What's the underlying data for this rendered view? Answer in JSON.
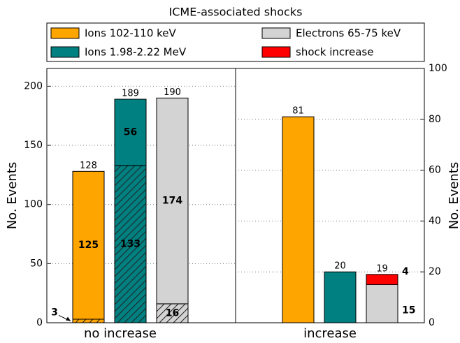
{
  "chart_data": {
    "type": "bar",
    "title": "ICME-associated shocks",
    "series": [
      {
        "name": "Ions 102-110 keV",
        "color": "#ffa500"
      },
      {
        "name": "Ions 1.98-2.22 MeV",
        "color": "#008080"
      },
      {
        "name": "Electrons 65-75 keV",
        "color": "#d3d3d3"
      },
      {
        "name": "shock increase",
        "color": "#ff0000"
      }
    ],
    "panels": [
      {
        "category": "no increase",
        "ylabel": "No. Events",
        "axis": "y",
        "ylim": [
          0,
          215
        ],
        "yticks": [
          0,
          50,
          100,
          150,
          200
        ],
        "grid": true,
        "bars": [
          {
            "segments": [
              {
                "series": 0,
                "value": 3,
                "hatch": true
              },
              {
                "series": 0,
                "value": 125
              }
            ],
            "total": 128
          },
          {
            "segments": [
              {
                "series": 1,
                "value": 133,
                "hatch": true
              },
              {
                "series": 1,
                "value": 56
              }
            ],
            "total": 189
          },
          {
            "segments": [
              {
                "series": 2,
                "value": 16,
                "hatch": true
              },
              {
                "series": 2,
                "value": 174
              }
            ],
            "total": 190
          }
        ]
      },
      {
        "category": "increase",
        "ylabel": "No. Events",
        "axis": "y2",
        "ylim": [
          0,
          100
        ],
        "yticks": [
          0,
          20,
          40,
          60,
          80,
          100
        ],
        "grid": true,
        "bars": [
          {
            "segments": [
              {
                "series": 0,
                "value": 81
              }
            ],
            "total": 81
          },
          {
            "segments": [
              {
                "series": 1,
                "value": 20
              }
            ],
            "total": 20
          },
          {
            "segments": [
              {
                "series": 2,
                "value": 15
              },
              {
                "series": 3,
                "value": 4
              }
            ],
            "total": 19
          }
        ]
      }
    ]
  }
}
